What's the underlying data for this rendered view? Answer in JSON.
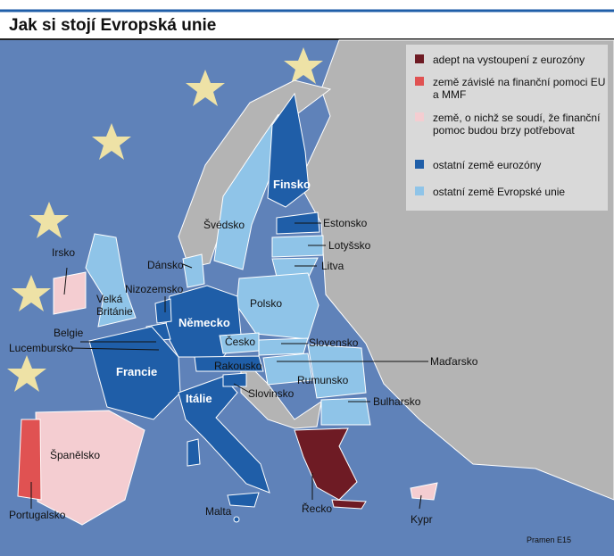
{
  "title": "Jak si stojí Evropská unie",
  "legend": [
    {
      "label": "adept na vystoupení z eurozóny",
      "color": "#6e1b24"
    },
    {
      "label": "země závislé na finanční pomoci EU a MMF",
      "color": "#e05252"
    },
    {
      "label": "země, o nichž se soudí, že finanční pomoc budou brzy potřebovat",
      "color": "#f4cdd1"
    },
    {
      "label": "ostatní země eurozóny",
      "color": "#1f5ea8"
    },
    {
      "label": "ostatní země Evropské unie",
      "color": "#8fc4e8"
    }
  ],
  "labels": [
    "Irsko",
    "Švédsko",
    "Finsko",
    "Estonsko",
    "Lotyšsko",
    "Litva",
    "Dánsko",
    "Nizozemsko",
    "Velká Británie",
    "Polsko",
    "Německo",
    "Belgie",
    "Lucembursko",
    "Česko",
    "Slovensko",
    "Francie",
    "Rakousko",
    "Maďarsko",
    "Rumunsko",
    "Slovinsko",
    "Itálie",
    "Bulharsko",
    "Španělsko",
    "Portugalsko",
    "Malta",
    "Řecko",
    "Kypr"
  ],
  "source": "Pramen E15"
}
